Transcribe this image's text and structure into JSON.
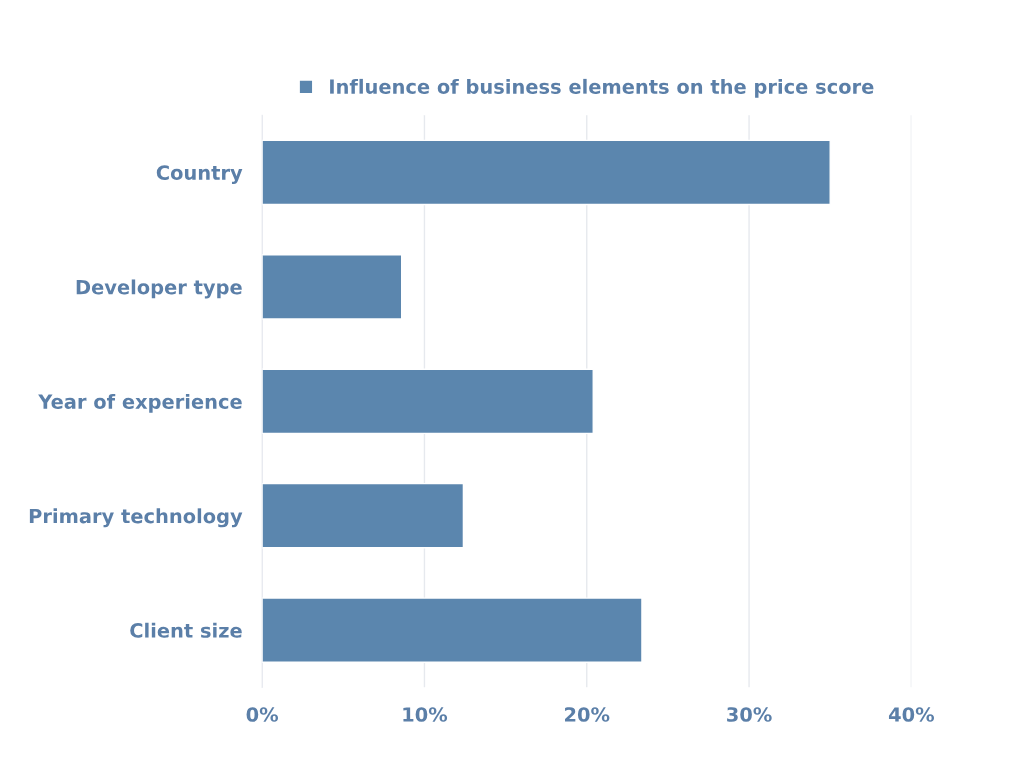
{
  "chart_data": {
    "type": "bar",
    "orientation": "horizontal",
    "categories": [
      "Country",
      "Developer type",
      "Year of experience",
      "Primary technology",
      "Client size"
    ],
    "series": [
      {
        "name": "Influence of business elements on the price score",
        "color": "#5b86ae",
        "values": [
          35.0,
          8.6,
          20.4,
          12.4,
          23.4
        ]
      }
    ],
    "xlim": [
      0,
      40
    ],
    "xticks": [
      {
        "value": 0,
        "label": "0%"
      },
      {
        "value": 10,
        "label": "10%"
      },
      {
        "value": 20,
        "label": "20%"
      },
      {
        "value": 30,
        "label": "30%"
      },
      {
        "value": 40,
        "label": "40%"
      }
    ],
    "grid": "x",
    "legend": "top"
  }
}
